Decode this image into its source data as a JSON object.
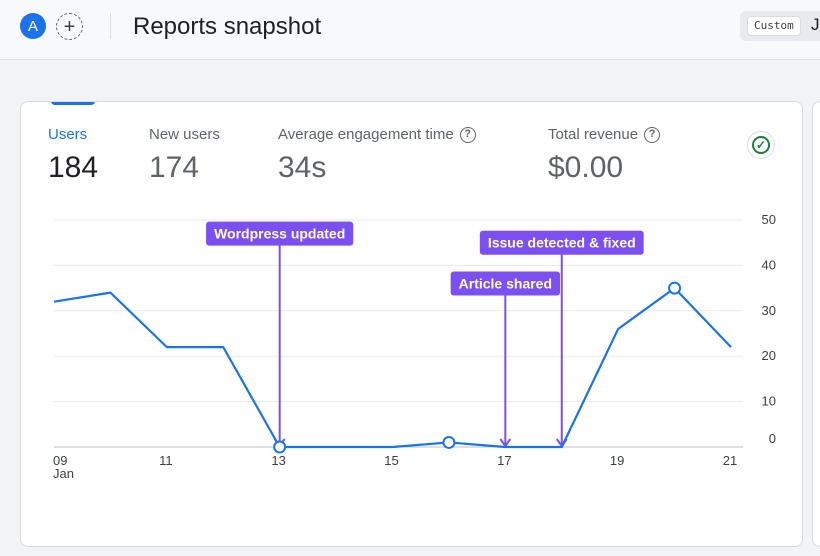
{
  "header": {
    "avatar_letter": "A",
    "add_symbol": "+",
    "title": "Reports snapshot",
    "date_chip": "Custom",
    "date_text": "J"
  },
  "metrics": [
    {
      "label": "Users",
      "value": "184",
      "active": true,
      "help": false
    },
    {
      "label": "New users",
      "value": "174",
      "active": false,
      "help": false
    },
    {
      "label": "Average engagement time",
      "value": "34s",
      "active": false,
      "help": true
    },
    {
      "label": "Total revenue",
      "value": "$0.00",
      "active": false,
      "help": true
    }
  ],
  "icons": {
    "help": "help-circle-icon",
    "status": "check-circle-icon"
  },
  "colors": {
    "accent": "#1a73e8",
    "annotation": "#7b4ff0",
    "success": "#188038"
  },
  "chart_data": {
    "type": "line",
    "x": [
      9,
      10,
      11,
      12,
      13,
      14,
      15,
      16,
      17,
      18,
      19,
      20,
      21
    ],
    "values": [
      32,
      34,
      22,
      22,
      0,
      0,
      0,
      1,
      0,
      0,
      26,
      35,
      22
    ],
    "marker_x": [
      13,
      16,
      20
    ],
    "xticks": [
      {
        "x": 9,
        "label": "09",
        "sub": "Jan"
      },
      {
        "x": 11,
        "label": "11",
        "sub": ""
      },
      {
        "x": 13,
        "label": "13",
        "sub": ""
      },
      {
        "x": 15,
        "label": "15",
        "sub": ""
      },
      {
        "x": 17,
        "label": "17",
        "sub": ""
      },
      {
        "x": 19,
        "label": "19",
        "sub": ""
      },
      {
        "x": 21,
        "label": "21",
        "sub": ""
      }
    ],
    "yticks": [
      0,
      10,
      20,
      30,
      40,
      50
    ],
    "ylim": [
      0,
      50
    ],
    "xlim": [
      9,
      21
    ],
    "grid": true,
    "annotations": [
      {
        "label": "Wordpress updated",
        "x": 13,
        "level": 47
      },
      {
        "label": "Article shared",
        "x": 17,
        "level": 36
      },
      {
        "label": "Issue detected & fixed",
        "x": 18,
        "level": 45
      }
    ]
  }
}
